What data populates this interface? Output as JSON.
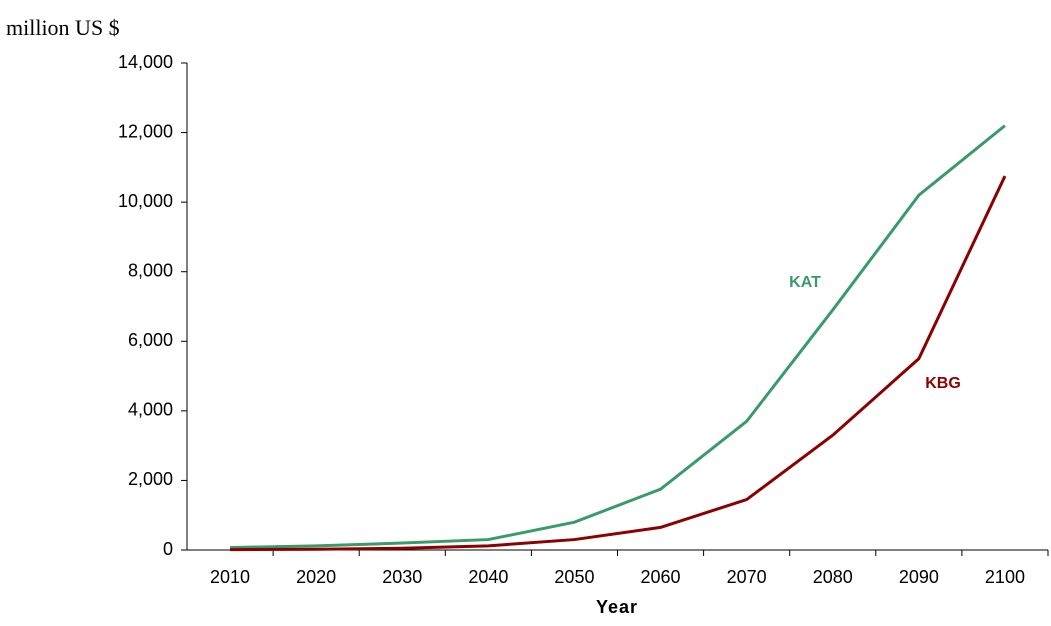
{
  "chart_data": {
    "type": "line",
    "title": "million US $",
    "x_label": "Year",
    "categories": [
      "2010",
      "2020",
      "2030",
      "2040",
      "2050",
      "2060",
      "2070",
      "2080",
      "2090",
      "2100"
    ],
    "series": [
      {
        "name": "KAT",
        "color": "#3a9a6a",
        "values": [
          70,
          120,
          200,
          300,
          800,
          1750,
          3700,
          6900,
          10200,
          12200
        ]
      },
      {
        "name": "KBG",
        "color": "#8b0000",
        "values": [
          10,
          20,
          50,
          120,
          300,
          650,
          1450,
          3300,
          5500,
          10750
        ]
      }
    ],
    "ylim": [
      0,
      14000
    ],
    "yticks": [
      0,
      {
        "value": 2000,
        "label": "2,000"
      },
      {
        "value": 4000,
        "label": "4,000"
      },
      {
        "value": 6000,
        "label": "6,000"
      },
      {
        "value": 8000,
        "label": "8,000"
      },
      {
        "value": 10000,
        "label": "10,000"
      },
      {
        "value": 12000,
        "label": "12,000"
      },
      {
        "value": 14000,
        "label": "14,000"
      }
    ],
    "grid": false
  }
}
